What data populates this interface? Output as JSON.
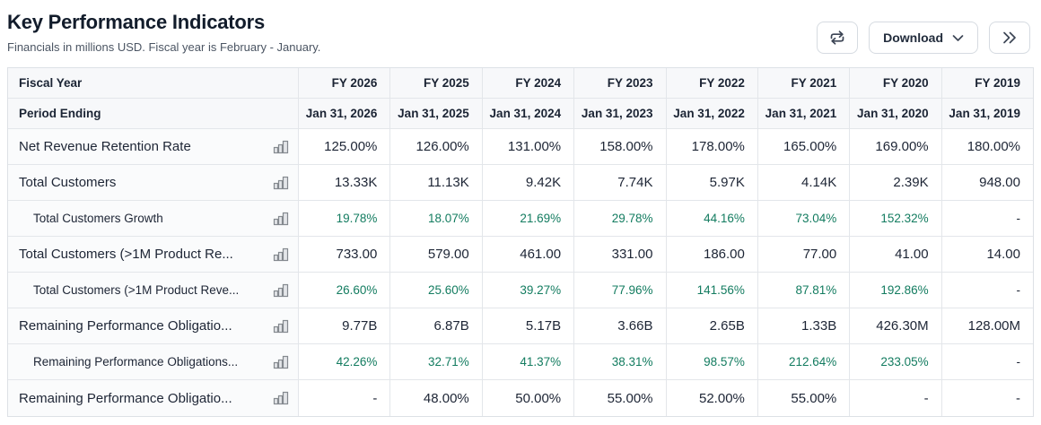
{
  "header": {
    "title": "Key Performance Indicators",
    "subtitle": "Financials in millions USD. Fiscal year is February - January.",
    "buttons": {
      "transpose": "swap-arrows-icon",
      "download_label": "Download",
      "download_chevron": "chevron-down-icon",
      "expand": "double-chevron-right-icon"
    }
  },
  "colors": {
    "positive_value": "#137c60",
    "text": "#1d2535",
    "header_bg": "#f7f8fa",
    "border": "#e3e6ea",
    "button_border": "#d6dbe1"
  },
  "table": {
    "header_rows": [
      {
        "label": "Fiscal Year",
        "values": [
          "FY 2026",
          "FY 2025",
          "FY 2024",
          "FY 2023",
          "FY 2022",
          "FY 2021",
          "FY 2020",
          "FY 2019"
        ]
      },
      {
        "label": "Period Ending",
        "values": [
          "Jan 31, 2026",
          "Jan 31, 2025",
          "Jan 31, 2024",
          "Jan 31, 2023",
          "Jan 31, 2022",
          "Jan 31, 2021",
          "Jan 31, 2020",
          "Jan 31, 2019"
        ]
      }
    ],
    "rows": [
      {
        "label": "Net Revenue Retention Rate",
        "indent": false,
        "green": false,
        "values": [
          "125.00%",
          "126.00%",
          "131.00%",
          "158.00%",
          "178.00%",
          "165.00%",
          "169.00%",
          "180.00%"
        ]
      },
      {
        "label": "Total Customers",
        "indent": false,
        "green": false,
        "values": [
          "13.33K",
          "11.13K",
          "9.42K",
          "7.74K",
          "5.97K",
          "4.14K",
          "2.39K",
          "948.00"
        ]
      },
      {
        "label": "Total Customers Growth",
        "indent": true,
        "green": true,
        "values": [
          "19.78%",
          "18.07%",
          "21.69%",
          "29.78%",
          "44.16%",
          "73.04%",
          "152.32%",
          "-"
        ]
      },
      {
        "label": "Total Customers (>1M Product Re...",
        "indent": false,
        "green": false,
        "values": [
          "733.00",
          "579.00",
          "461.00",
          "331.00",
          "186.00",
          "77.00",
          "41.00",
          "14.00"
        ]
      },
      {
        "label": "Total Customers (>1M Product Reve...",
        "indent": true,
        "green": true,
        "values": [
          "26.60%",
          "25.60%",
          "39.27%",
          "77.96%",
          "141.56%",
          "87.81%",
          "192.86%",
          "-"
        ]
      },
      {
        "label": "Remaining Performance Obligatio...",
        "indent": false,
        "green": false,
        "values": [
          "9.77B",
          "6.87B",
          "5.17B",
          "3.66B",
          "2.65B",
          "1.33B",
          "426.30M",
          "128.00M"
        ]
      },
      {
        "label": "Remaining Performance Obligations...",
        "indent": true,
        "green": true,
        "values": [
          "42.26%",
          "32.71%",
          "41.37%",
          "38.31%",
          "98.57%",
          "212.64%",
          "233.05%",
          "-"
        ]
      },
      {
        "label": "Remaining Performance Obligatio...",
        "indent": false,
        "green": false,
        "values": [
          "-",
          "48.00%",
          "50.00%",
          "55.00%",
          "52.00%",
          "55.00%",
          "-",
          "-"
        ]
      }
    ]
  }
}
